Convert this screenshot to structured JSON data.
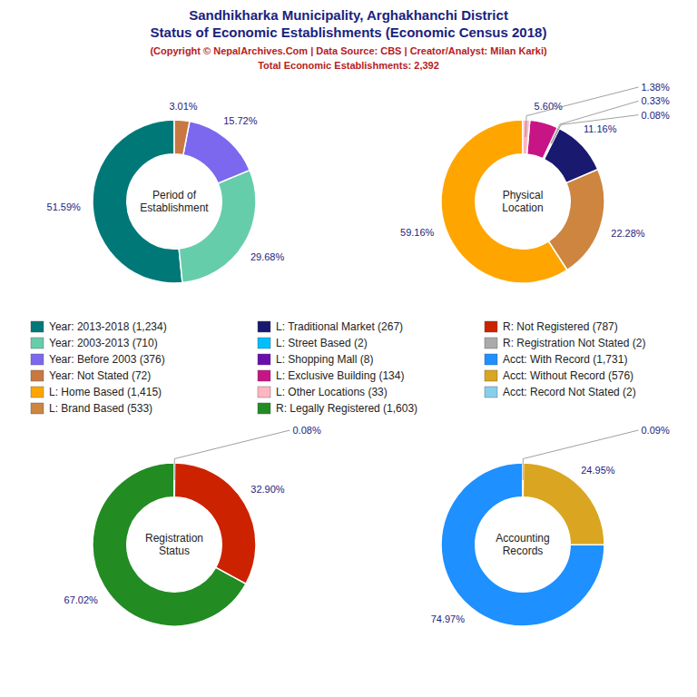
{
  "title": [
    "Sandhikharka Municipality, Arghakhanchi District",
    "Status of Economic Establishments (Economic Census 2018)"
  ],
  "subtitle": [
    "(Copyright © NepalArchives.Com | Data Source: CBS | Creator/Analyst: Milan Karki)",
    "Total Economic Establishments: 2,392"
  ],
  "chart_data": [
    {
      "type": "pie",
      "title": "Period of\nEstablishment",
      "categories": [
        "Year: 2013-2018 (1,234)",
        "Year: 2003-2013 (710)",
        "Year: Before 2003 (376)",
        "Year: Not Stated (72)"
      ],
      "values": [
        51.59,
        29.68,
        15.72,
        3.01
      ],
      "value_labels": [
        "51.59%",
        "29.68%",
        "15.72%",
        "3.01%"
      ],
      "colors": [
        "#007878",
        "#66cdaa",
        "#7b68ee",
        "#c87941"
      ],
      "data_labels": true
    },
    {
      "type": "pie",
      "title": "Physical\nLocation",
      "categories": [
        "L: Home Based (1,415)",
        "L: Brand Based (533)",
        "L: Traditional Market (267)",
        "L: Street Based (2)",
        "L: Shopping Mall (8)",
        "L: Exclusive Building (134)",
        "L: Other Locations (33)"
      ],
      "values": [
        59.16,
        22.28,
        11.16,
        0.08,
        0.33,
        5.6,
        1.38
      ],
      "value_labels": [
        "59.16%",
        "22.28%",
        "11.16%",
        "0.08%",
        "0.33%",
        "5.60%",
        "1.38%"
      ],
      "colors": [
        "#ffa500",
        "#cd853f",
        "#191970",
        "#00bfff",
        "#6a0dad",
        "#c71585",
        "#ffb6c1"
      ],
      "data_labels": true
    },
    {
      "type": "pie",
      "title": "Registration\nStatus",
      "categories": [
        "R: Legally Registered (1,603)",
        "R: Not Registered (787)",
        "R: Registration Not Stated (2)"
      ],
      "values": [
        67.02,
        32.9,
        0.08
      ],
      "value_labels": [
        "67.02%",
        "32.90%",
        "0.08%"
      ],
      "colors": [
        "#228b22",
        "#cc2200",
        "#aaaaaa"
      ],
      "data_labels": true
    },
    {
      "type": "pie",
      "title": "Accounting\nRecords",
      "categories": [
        "Acct: With Record (1,731)",
        "Acct: Without Record (576)",
        "Acct: Record Not Stated (2)"
      ],
      "values": [
        74.97,
        24.95,
        0.09
      ],
      "value_labels": [
        "74.97%",
        "24.95%",
        "0.09%"
      ],
      "colors": [
        "#1e90ff",
        "#daa520",
        "#87ceeb"
      ],
      "data_labels": true
    }
  ]
}
